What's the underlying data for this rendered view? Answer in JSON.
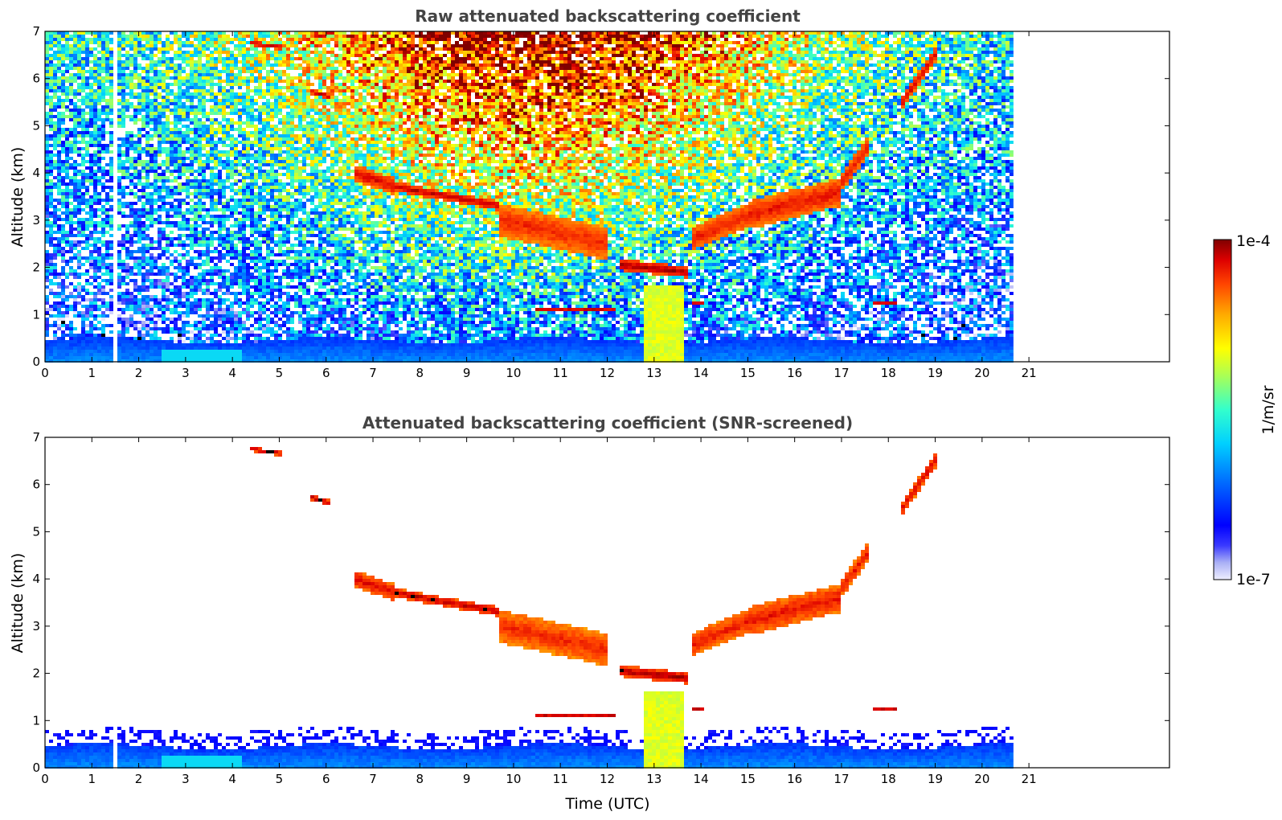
{
  "chart_data": [
    {
      "type": "heatmap",
      "title": "Raw attenuated backscattering coefficient",
      "xlabel": "",
      "ylabel": "Altitude (km)",
      "xlim": [
        0,
        24
      ],
      "ylim": [
        0,
        7
      ],
      "x_ticks": [
        "0",
        "1",
        "2",
        "3",
        "4",
        "5",
        "6",
        "7",
        "8",
        "9",
        "10",
        "11",
        "12",
        "13",
        "14",
        "15",
        "16",
        "17",
        "18",
        "19",
        "20",
        "21"
      ],
      "y_ticks": [
        "0",
        "1",
        "2",
        "3",
        "4",
        "5",
        "6",
        "7"
      ],
      "data_extent_x": [
        0,
        20.67
      ],
      "gap": {
        "x": [
          1.45,
          1.56
        ]
      },
      "screened": false,
      "features": {
        "boundary_layer_top_km": 0.45,
        "aerosol_column": {
          "x": [
            12.7,
            13.6
          ],
          "y": [
            0,
            1.6
          ]
        },
        "cirrus_layers": [
          {
            "x": [
              4.4,
              5.1
            ],
            "y": 6.75
          },
          {
            "x": [
              5.7,
              6.1
            ],
            "y": 5.7
          },
          {
            "x": [
              6.6,
              9.7
            ],
            "y": [
              4.0,
              3.3
            ]
          },
          {
            "x": [
              12.7,
              13.6
            ],
            "y": 1.95
          },
          {
            "x": [
              13.9,
              17.5
            ],
            "y": [
              2.8,
              4.6
            ]
          },
          {
            "x": [
              18.3,
              19.0
            ],
            "y": [
              5.5,
              6.5
            ]
          }
        ]
      }
    },
    {
      "type": "heatmap",
      "title": "Attenuated backscattering coefficient (SNR-screened)",
      "xlabel": "Time (UTC)",
      "ylabel": "Altitude (km)",
      "xlim": [
        0,
        24
      ],
      "ylim": [
        0,
        7
      ],
      "x_ticks": [
        "0",
        "1",
        "2",
        "3",
        "4",
        "5",
        "6",
        "7",
        "8",
        "9",
        "10",
        "11",
        "12",
        "13",
        "14",
        "15",
        "16",
        "17",
        "18",
        "19",
        "20",
        "21"
      ],
      "y_ticks": [
        "0",
        "1",
        "2",
        "3",
        "4",
        "5",
        "6",
        "7"
      ],
      "data_extent_x": [
        0,
        20.67
      ],
      "gap": {
        "x": [
          1.45,
          1.56
        ]
      },
      "screened": true
    }
  ],
  "colorbar": {
    "label": "1/m/sr",
    "max_label": "1e-4",
    "min_label": "1e-7",
    "scale": "log",
    "range": [
      1e-07,
      0.0001
    ],
    "colormap": [
      "#eeeeff",
      "#b0b0f5",
      "#7070ee",
      "#0000ff",
      "#0070ff",
      "#00c8ff",
      "#30ffc8",
      "#a0ff60",
      "#ffff00",
      "#ffb000",
      "#ff5000",
      "#e00000",
      "#800000"
    ]
  }
}
